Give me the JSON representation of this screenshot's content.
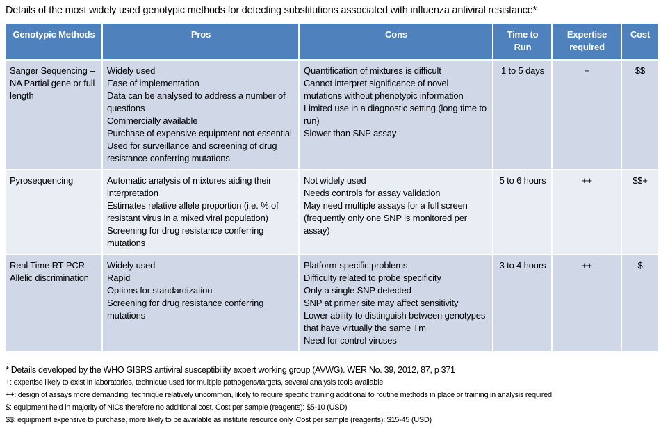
{
  "title": "Details of the most widely used genotypic methods for detecting substitutions associated with influenza antiviral resistance*",
  "table": {
    "headers": [
      "Genotypic Methods",
      "Pros",
      "Cons",
      "Time to Run",
      "Expertise required",
      "Cost"
    ],
    "header_color": "#4f81bd",
    "row_colors": [
      "#d0d8e8",
      "#e9edf4"
    ],
    "rows": [
      {
        "method": "Sanger Sequencing – NA Partial gene or full length",
        "pros": [
          "Widely used",
          "Ease of implementation",
          "Data can be analysed to address  a number of questions",
          "Commercially available",
          "Purchase of expensive equipment not essential",
          "Used for surveillance and screening of drug resistance-conferring mutations"
        ],
        "cons": [
          "Quantification of mixtures is difficult",
          "Cannot interpret significance of novel mutations without phenotypic information",
          "Limited use in a diagnostic setting (long time to run)",
          "Slower than SNP assay"
        ],
        "time": "1 to 5 days",
        "expertise": "+",
        "cost": "$$"
      },
      {
        "method": "Pyrosequencing",
        "pros": [
          "Automatic analysis of mixtures aiding their interpretation",
          "Estimates relative allele proportion (i.e. % of resistant virus in a mixed viral population)",
          "Screening for drug resistance conferring mutations"
        ],
        "cons": [
          "Not widely used",
          "Needs controls for assay validation",
          "May need multiple assays for a full screen (frequently only one SNP is monitored per assay)"
        ],
        "time": "5 to 6 hours",
        "expertise": "++",
        "cost": "$$+"
      },
      {
        "method": "Real Time RT-PCR Allelic discrimination",
        "pros": [
          "Widely used",
          "Rapid",
          "Options for standardization",
          "Screening for drug resistance conferring mutations"
        ],
        "cons": [
          "Platform-specific problems",
          "Difficulty related to probe specificity",
          "Only a single SNP detected",
          "SNP at primer site may affect sensitivity",
          "Lower ability to distinguish between genotypes that have virtually the same Tm",
          "Need for control viruses"
        ],
        "time": "3 to 4 hours",
        "expertise": "++",
        "cost": "$"
      }
    ]
  },
  "notes": [
    "* Details developed by the WHO GISRS antiviral susceptibility expert working group (AVWG). WER No. 39, 2012,  87, p 371",
    "+: expertise likely to exist in laboratories, technique used for multiple pathogens/targets, several analysis tools available",
    "++: design of assays more demanding, technique relatively uncommon, likely to require specific training additional to routine methods in place or training in analysis required",
    "$: equipment held in majority of NICs therefore no additional cost. Cost per sample (reagents): $5-10 (USD)",
    "$$: equipment expensive to purchase, more likely to be available as institute resource only. Cost per sample (reagents): $15-45 (USD)"
  ]
}
